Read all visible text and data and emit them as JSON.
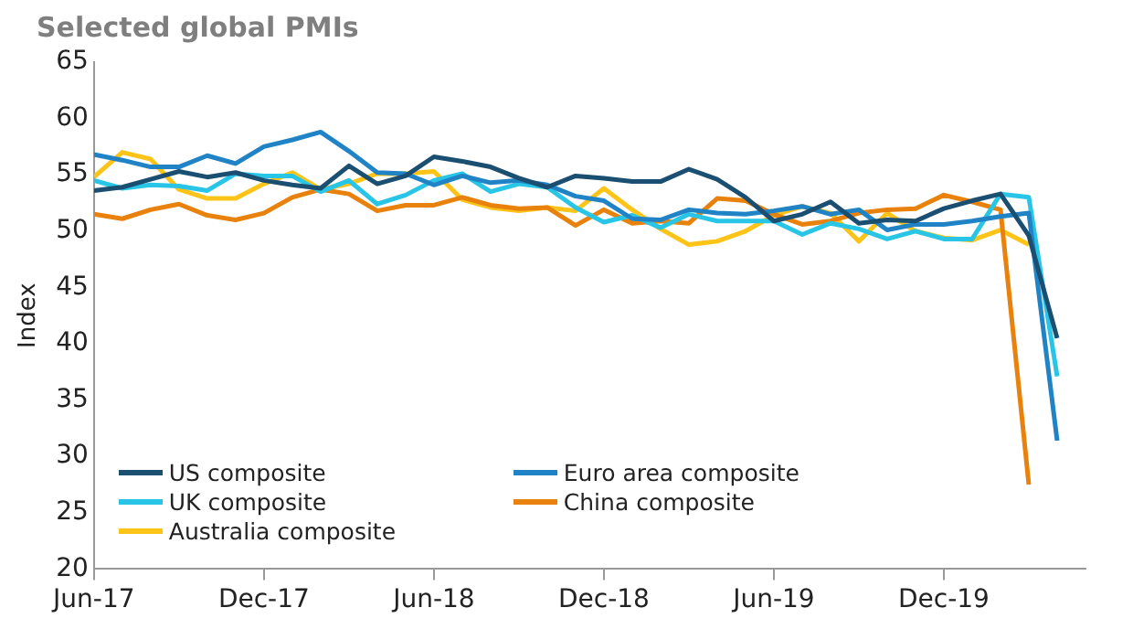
{
  "chart_data": {
    "type": "line",
    "title": "Selected global PMIs",
    "ylabel": "Index",
    "x": [
      "2017-06",
      "2017-07",
      "2017-08",
      "2017-09",
      "2017-10",
      "2017-11",
      "2017-12",
      "2018-01",
      "2018-02",
      "2018-03",
      "2018-04",
      "2018-05",
      "2018-06",
      "2018-07",
      "2018-08",
      "2018-09",
      "2018-10",
      "2018-11",
      "2018-12",
      "2019-01",
      "2019-02",
      "2019-03",
      "2019-04",
      "2019-05",
      "2019-06",
      "2019-07",
      "2019-08",
      "2019-09",
      "2019-10",
      "2019-11",
      "2019-12",
      "2020-01",
      "2020-02",
      "2020-03",
      "2020-04"
    ],
    "series": [
      {
        "name": "US composite",
        "color": "#1b4f72",
        "values": [
          53.6,
          53.9,
          54.6,
          55.3,
          54.8,
          55.2,
          54.5,
          54.1,
          53.8,
          55.8,
          54.2,
          54.9,
          56.6,
          56.2,
          55.7,
          54.7,
          53.9,
          54.9,
          54.7,
          54.4,
          54.4,
          55.5,
          54.6,
          53.0,
          50.9,
          51.5,
          52.6,
          50.7,
          51.0,
          50.9,
          52.0,
          52.7,
          53.3,
          49.6,
          40.5
        ]
      },
      {
        "name": "Euro area composite",
        "color": "#1f83c6",
        "values": [
          56.8,
          56.3,
          55.7,
          55.7,
          56.7,
          56.0,
          57.5,
          58.1,
          58.8,
          57.1,
          55.2,
          55.1,
          54.1,
          54.9,
          54.3,
          54.5,
          54.1,
          53.1,
          52.7,
          51.1,
          51.0,
          51.9,
          51.6,
          51.5,
          51.8,
          52.2,
          51.5,
          51.9,
          50.1,
          50.6,
          50.6,
          50.9,
          51.3,
          51.6,
          31.4
        ]
      },
      {
        "name": "UK composite",
        "color": "#29c5e6",
        "values": [
          54.5,
          53.8,
          54.1,
          54.0,
          53.6,
          55.1,
          54.9,
          54.9,
          53.5,
          54.5,
          52.4,
          53.2,
          54.5,
          55.1,
          53.5,
          54.2,
          53.9,
          52.1,
          50.8,
          51.4,
          50.3,
          51.5,
          50.9,
          50.9,
          50.9,
          49.7,
          50.7,
          50.2,
          49.3,
          50.0,
          49.3,
          49.3,
          53.3,
          53.0,
          37.1
        ]
      },
      {
        "name": "China composite",
        "color": "#e8820c",
        "values": [
          51.5,
          51.1,
          51.9,
          52.4,
          51.4,
          51.0,
          51.6,
          53.0,
          53.7,
          53.3,
          51.8,
          52.3,
          52.3,
          53.0,
          52.3,
          52.0,
          52.1,
          50.5,
          51.9,
          50.7,
          50.9,
          50.7,
          52.9,
          52.7,
          51.5,
          50.6,
          50.9,
          51.6,
          51.9,
          52.0,
          53.2,
          52.6,
          51.9,
          27.5,
          null
        ]
      },
      {
        "name": "Australia composite",
        "color": "#fcc419",
        "values": [
          54.8,
          57.0,
          56.4,
          53.7,
          52.9,
          52.9,
          54.2,
          55.2,
          53.7,
          54.2,
          55.1,
          55.1,
          55.3,
          52.8,
          52.1,
          51.8,
          52.1,
          51.8,
          53.8,
          51.9,
          50.2,
          48.8,
          49.1,
          50.0,
          51.4,
          52.2,
          51.6,
          49.1,
          51.6,
          50.0,
          49.4,
          49.2,
          50.1,
          48.8,
          null
        ]
      }
    ],
    "xlim": [
      "2017-06",
      "2020-05"
    ],
    "xticks": [
      {
        "value": "2017-06",
        "label": "Jun-17"
      },
      {
        "value": "2017-12",
        "label": "Dec-17"
      },
      {
        "value": "2018-06",
        "label": "Jun-18"
      },
      {
        "value": "2018-12",
        "label": "Dec-18"
      },
      {
        "value": "2019-06",
        "label": "Jun-19"
      },
      {
        "value": "2019-12",
        "label": "Dec-19"
      }
    ],
    "ylim": [
      20,
      65
    ],
    "yticks": [
      20,
      25,
      30,
      35,
      40,
      45,
      50,
      55,
      60,
      65
    ],
    "grid": false,
    "legend": "bottom left",
    "marker": "none",
    "line_style": "solid"
  }
}
